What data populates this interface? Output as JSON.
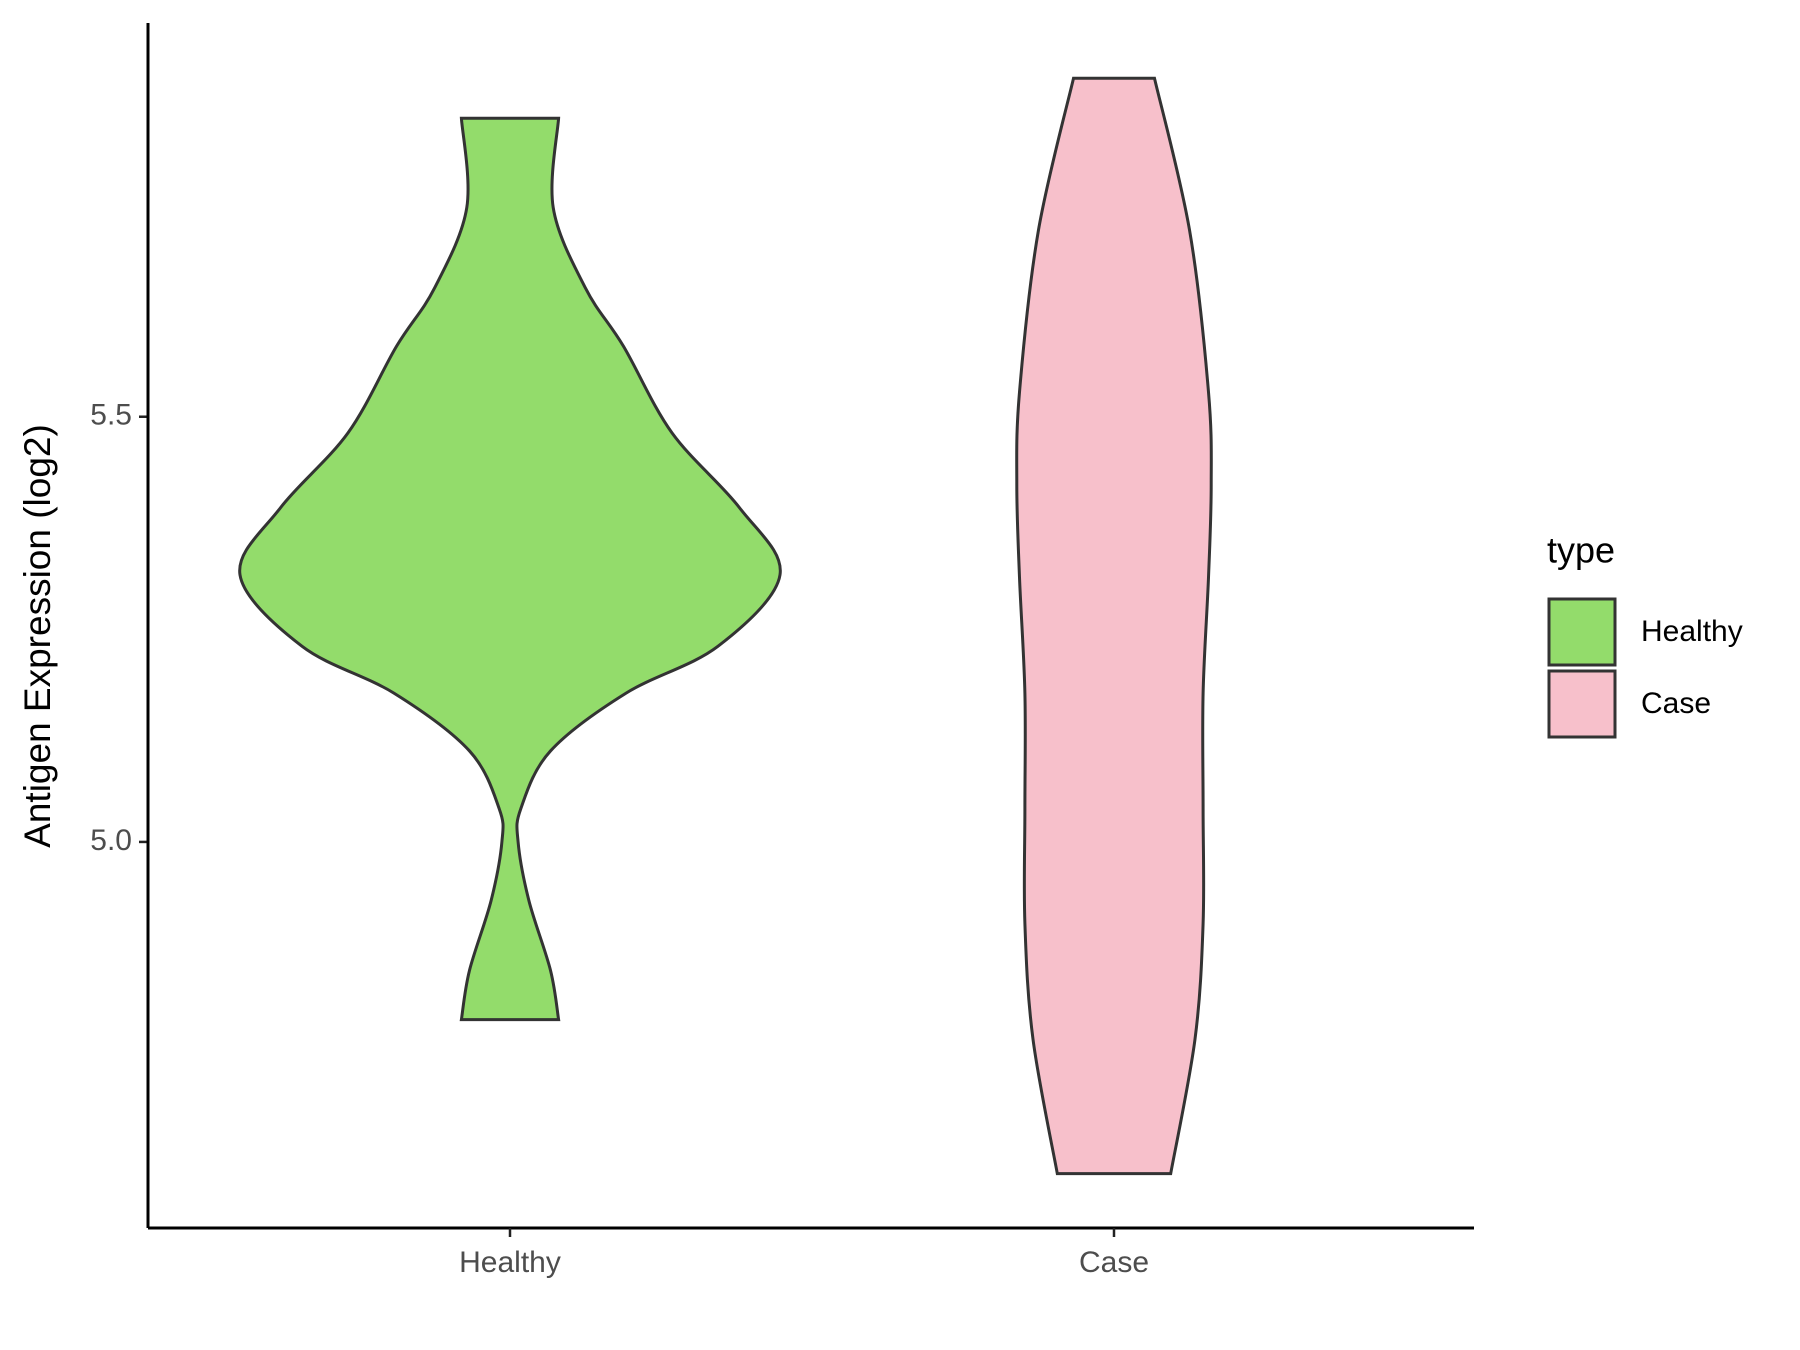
{
  "chart_data": {
    "type": "violin",
    "ylabel": "Antigen Expression (log2)",
    "categories": [
      "Healthy",
      "Case"
    ],
    "ylim": [
      4.546,
      5.963
    ],
    "yticks": [
      {
        "value": 5.0,
        "label": "5.0"
      },
      {
        "value": 5.5,
        "label": "5.5"
      }
    ],
    "legend_title": "type",
    "legend_position": "right",
    "series": [
      {
        "name": "Healthy",
        "color": "#93dc6b",
        "y": [
          5.851,
          5.746,
          5.651,
          5.583,
          5.481,
          5.393,
          5.314,
          5.23,
          5.175,
          5.107,
          5.039,
          5.0,
          4.931,
          4.849,
          4.791
        ],
        "density": [
          0.18,
          0.16,
          0.28,
          0.42,
          0.6,
          0.85,
          1.0,
          0.77,
          0.43,
          0.15,
          0.04,
          0.03,
          0.07,
          0.15,
          0.18
        ]
      },
      {
        "name": "Case",
        "color": "#f7c0cb",
        "y": [
          5.898,
          5.719,
          5.529,
          5.42,
          5.311,
          5.175,
          5.039,
          4.904,
          4.768,
          4.61
        ],
        "density": [
          0.15,
          0.28,
          0.35,
          0.36,
          0.35,
          0.33,
          0.33,
          0.33,
          0.3,
          0.21
        ]
      }
    ]
  }
}
